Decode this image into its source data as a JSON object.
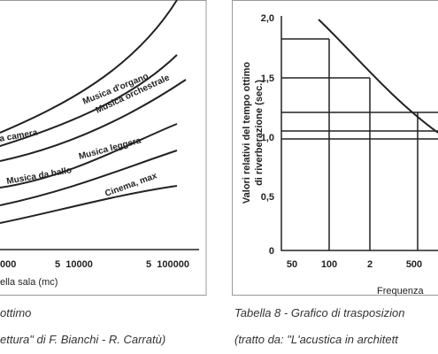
{
  "left_figure": {
    "curve_labels": [
      "Musica d'organo",
      "Musica orchestrale",
      "a camera",
      "Musica leggera",
      "Musica da ballo",
      "Cinema, max"
    ],
    "x_ticks": [
      "000",
      "5  10000",
      "5  100000"
    ],
    "x_label": "ella sala (mc)",
    "caption": [
      "ottimo",
      "ettura\" di F. Bianchi - R. Carratù)"
    ]
  },
  "right_figure": {
    "y_label": [
      "Valori relativi del tempo ottimo",
      "di riverberazione (sec.)"
    ],
    "y_ticks": [
      "2,0",
      "1,5",
      "1,0",
      "0,5",
      "0"
    ],
    "x_ticks": [
      "50",
      "100",
      "2",
      "500"
    ],
    "x_label": "Frequenza",
    "caption": [
      "Tabella 8 - Grafico di trasposizion",
      "(tratto da: \"L'acustica in architett"
    ]
  }
}
